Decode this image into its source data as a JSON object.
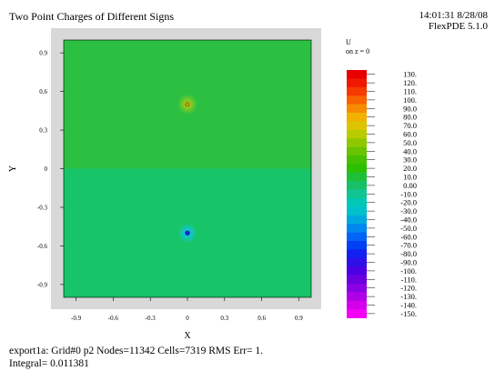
{
  "header": {
    "title": "Two Point Charges of Different Signs",
    "timestamp": "14:01:31 8/28/08",
    "version": "FlexPDE 5.1.0"
  },
  "footer": {
    "line1": "export1a:  Grid#0  p2  Nodes=11342 Cells=7319 RMS Err= 1.",
    "line2": "Integral=  0.011381"
  },
  "chart_data": {
    "type": "heatmap",
    "title": "Two Point Charges of Different Signs",
    "xlabel": "X",
    "ylabel": "Y",
    "xlim": [
      -1.0,
      1.0
    ],
    "ylim": [
      -1.0,
      1.0
    ],
    "x_ticks": [
      -0.9,
      -0.6,
      -0.3,
      0,
      0.3,
      0.6,
      0.9
    ],
    "x_tick_labels": [
      "-0.9",
      "-0.6",
      "-0.3",
      "0",
      "0.3",
      "0.6",
      "0.9"
    ],
    "y_ticks": [
      0.9,
      0.6,
      0.3,
      0,
      -0.3,
      -0.6,
      -0.9
    ],
    "y_tick_labels": [
      "0.9",
      "0.6",
      "0.3",
      "0",
      "-0.3",
      "-0.6",
      "-0.9"
    ],
    "grid": false,
    "colorbar": {
      "title": "U",
      "subtitle": "on z = 0",
      "placement": "right",
      "levels": [
        130,
        120,
        110,
        100,
        90,
        80,
        70,
        60,
        50,
        40,
        30,
        20,
        10,
        0,
        -10,
        -20,
        -30,
        -40,
        -50,
        -60,
        -70,
        -80,
        -90,
        -100,
        -110,
        -120,
        -130,
        -140,
        -150
      ],
      "level_labels": [
        "130.",
        "120.",
        "110.",
        "100.",
        "90.0",
        "80.0",
        "70.0",
        "60.0",
        "50.0",
        "40.0",
        "30.0",
        "20.0",
        "10.0",
        "0.00",
        "-10.0",
        "-20.0",
        "-30.0",
        "-40.0",
        "-50.0",
        "-60.0",
        "-70.0",
        "-80.0",
        "-90.0",
        "-100.",
        "-110.",
        "-120.",
        "-130.",
        "-140.",
        "-150."
      ],
      "colors": [
        "#e80000",
        "#f01800",
        "#f53a00",
        "#f86200",
        "#f88c00",
        "#f2b000",
        "#dcc400",
        "#b8cc00",
        "#90c800",
        "#68c400",
        "#44c000",
        "#2cc000",
        "#1ec03a",
        "#18c068",
        "#10c494",
        "#00c8b4",
        "#00c0cc",
        "#00a8e0",
        "#0088f0",
        "#0064f4",
        "#0040f4",
        "#1420f0",
        "#3010e8",
        "#4c00e4",
        "#6a00e0",
        "#8c00e4",
        "#b000e8",
        "#d400ec",
        "#f400f8"
      ]
    },
    "regions": [
      {
        "name": "upper half",
        "y_range": [
          0,
          1.0
        ],
        "approx_value": 10,
        "color": "#2cc043"
      },
      {
        "name": "lower half",
        "y_range": [
          -1.0,
          0
        ],
        "approx_value": 0,
        "color": "#18c468"
      }
    ],
    "charges": [
      {
        "name": "positive charge",
        "x": 0.0,
        "y": 0.5,
        "peak_color": "#d0ac00",
        "halo_color": "#88cc22"
      },
      {
        "name": "negative charge",
        "x": 0.0,
        "y": -0.5,
        "peak_color": "#1a28e8",
        "halo_color": "#10c8c8"
      }
    ]
  }
}
